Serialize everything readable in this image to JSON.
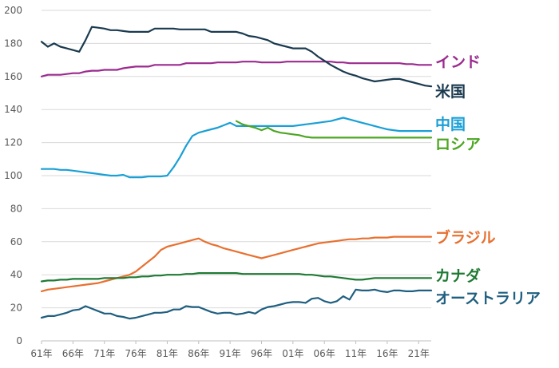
{
  "chart_data": {
    "type": "line",
    "title": "",
    "xlabel": "",
    "ylabel": "",
    "ylim": [
      0,
      200
    ],
    "xlim": [
      1961,
      2023
    ],
    "yticks": [
      0,
      20,
      40,
      60,
      80,
      100,
      120,
      140,
      160,
      180,
      200
    ],
    "xticks": [
      {
        "x": 1961,
        "label": "61年"
      },
      {
        "x": 1966,
        "label": "66年"
      },
      {
        "x": 1971,
        "label": "71年"
      },
      {
        "x": 1976,
        "label": "76年"
      },
      {
        "x": 1981,
        "label": "81年"
      },
      {
        "x": 1986,
        "label": "86年"
      },
      {
        "x": 1991,
        "label": "91年"
      },
      {
        "x": 1996,
        "label": "96年"
      },
      {
        "x": 2001,
        "label": "01年"
      },
      {
        "x": 2006,
        "label": "06年"
      },
      {
        "x": 2011,
        "label": "11年"
      },
      {
        "x": 2016,
        "label": "16年"
      },
      {
        "x": 2021,
        "label": "21年"
      }
    ],
    "grid": true,
    "legend": "direct labels at right end of lines",
    "series": [
      {
        "name": "インド",
        "color": "#9b2a8f",
        "x": [
          1961,
          1962,
          1963,
          1964,
          1965,
          1966,
          1967,
          1968,
          1969,
          1970,
          1971,
          1972,
          1973,
          1974,
          1975,
          1976,
          1977,
          1978,
          1979,
          1980,
          1981,
          1982,
          1983,
          1984,
          1985,
          1986,
          1987,
          1988,
          1989,
          1990,
          1991,
          1992,
          1993,
          1994,
          1995,
          1996,
          1997,
          1998,
          1999,
          2000,
          2001,
          2002,
          2003,
          2004,
          2005,
          2006,
          2007,
          2008,
          2009,
          2010,
          2011,
          2012,
          2013,
          2014,
          2015,
          2016,
          2017,
          2018,
          2019,
          2020,
          2021,
          2022,
          2023
        ],
        "values": [
          160,
          161,
          161,
          161,
          161.5,
          162,
          162,
          163,
          163.5,
          163.5,
          164,
          164,
          164,
          165,
          165.5,
          166,
          166,
          166,
          167,
          167,
          167,
          167,
          167,
          168,
          168,
          168,
          168,
          168,
          168.5,
          168.5,
          168.5,
          168.5,
          169,
          169,
          169,
          168.5,
          168.5,
          168.5,
          168.5,
          169,
          169,
          169,
          169,
          169,
          169,
          169,
          169,
          168.5,
          168.5,
          168,
          168,
          168,
          168,
          168,
          168,
          168,
          168,
          168,
          167.5,
          167.5,
          167,
          167,
          167
        ]
      },
      {
        "name": "米国",
        "color": "#1a3a4f",
        "x": [
          1961,
          1962,
          1963,
          1964,
          1965,
          1966,
          1967,
          1968,
          1969,
          1970,
          1971,
          1972,
          1973,
          1974,
          1975,
          1976,
          1977,
          1978,
          1979,
          1980,
          1981,
          1982,
          1983,
          1984,
          1985,
          1986,
          1987,
          1988,
          1989,
          1990,
          1991,
          1992,
          1993,
          1994,
          1995,
          1996,
          1997,
          1998,
          1999,
          2000,
          2001,
          2002,
          2003,
          2004,
          2005,
          2006,
          2007,
          2008,
          2009,
          2010,
          2011,
          2012,
          2013,
          2014,
          2015,
          2016,
          2017,
          2018,
          2019,
          2020,
          2021,
          2022,
          2023
        ],
        "values": [
          181,
          178,
          180,
          178,
          177,
          176,
          175,
          182,
          190,
          189.5,
          189,
          188,
          188,
          187.5,
          187,
          187,
          187,
          187,
          189,
          189,
          189,
          189,
          188.5,
          188.5,
          188.5,
          188.5,
          188.5,
          187,
          187,
          187,
          187,
          187,
          186,
          184.5,
          184,
          183,
          182,
          180,
          179,
          178,
          177,
          177,
          177,
          175,
          172,
          169.5,
          167,
          165,
          163,
          161.5,
          160.5,
          159,
          158,
          157,
          157.5,
          158,
          158.5,
          158.5,
          157.5,
          156.5,
          155.5,
          154.5,
          154
        ]
      },
      {
        "name": "中国",
        "color": "#1a9fd6",
        "x": [
          1961,
          1962,
          1963,
          1964,
          1965,
          1966,
          1967,
          1968,
          1969,
          1970,
          1971,
          1972,
          1973,
          1974,
          1975,
          1976,
          1977,
          1978,
          1979,
          1980,
          1981,
          1982,
          1983,
          1984,
          1985,
          1986,
          1987,
          1988,
          1989,
          1990,
          1991,
          1992,
          1993,
          1994,
          1995,
          1996,
          1997,
          1998,
          1999,
          2000,
          2001,
          2002,
          2003,
          2004,
          2005,
          2006,
          2007,
          2008,
          2009,
          2010,
          2011,
          2012,
          2013,
          2014,
          2015,
          2016,
          2017,
          2018,
          2019,
          2020,
          2021,
          2022,
          2023
        ],
        "values": [
          104,
          104,
          104,
          103.5,
          103.5,
          103,
          102.5,
          102,
          101.5,
          101,
          100.5,
          100,
          100,
          100.5,
          99,
          99,
          99,
          99.5,
          99.5,
          99.5,
          100,
          105,
          111,
          118,
          124,
          126,
          127,
          128,
          129,
          130.5,
          132,
          130,
          130,
          130,
          130,
          130,
          130,
          130,
          130,
          130,
          130,
          130.5,
          131,
          131.5,
          132,
          132.5,
          133,
          134,
          135,
          134,
          133,
          132,
          131,
          130,
          129,
          128,
          127.5,
          127,
          127,
          127,
          127,
          127,
          127
        ]
      },
      {
        "name": "ロシア",
        "color": "#4da623",
        "x": [
          1992,
          1993,
          1994,
          1995,
          1996,
          1997,
          1998,
          1999,
          2000,
          2001,
          2002,
          2003,
          2004,
          2005,
          2006,
          2007,
          2008,
          2009,
          2010,
          2011,
          2012,
          2013,
          2014,
          2015,
          2016,
          2017,
          2018,
          2019,
          2020,
          2021,
          2022,
          2023
        ],
        "values": [
          133,
          131,
          130,
          129,
          127.5,
          129,
          127,
          126,
          125.5,
          125,
          124.5,
          123.5,
          123,
          123,
          123,
          123,
          123,
          123,
          123,
          123,
          123,
          123,
          123,
          123,
          123,
          123,
          123,
          123,
          123,
          123,
          123,
          123
        ]
      },
      {
        "name": "ブラジル",
        "color": "#e87030",
        "x": [
          1961,
          1962,
          1963,
          1964,
          1965,
          1966,
          1967,
          1968,
          1969,
          1970,
          1971,
          1972,
          1973,
          1974,
          1975,
          1976,
          1977,
          1978,
          1979,
          1980,
          1981,
          1982,
          1983,
          1984,
          1985,
          1986,
          1987,
          1988,
          1989,
          1990,
          1991,
          1992,
          1993,
          1994,
          1995,
          1996,
          1997,
          1998,
          1999,
          2000,
          2001,
          2002,
          2003,
          2004,
          2005,
          2006,
          2007,
          2008,
          2009,
          2010,
          2011,
          2012,
          2013,
          2014,
          2015,
          2016,
          2017,
          2018,
          2019,
          2020,
          2021,
          2022,
          2023
        ],
        "values": [
          30,
          31,
          31.5,
          32,
          32.5,
          33,
          33.5,
          34,
          34.5,
          35,
          36,
          37,
          38,
          39,
          40,
          42,
          45,
          48,
          51,
          55,
          57,
          58,
          59,
          60,
          61,
          62,
          60,
          58.5,
          57.5,
          56,
          55,
          54,
          53,
          52,
          51,
          50,
          51,
          52,
          53,
          54,
          55,
          56,
          57,
          58,
          59,
          59.5,
          60,
          60.5,
          61,
          61.5,
          61.5,
          62,
          62,
          62.5,
          62.5,
          62.5,
          63,
          63,
          63,
          63,
          63,
          63,
          63
        ]
      },
      {
        "name": "カナダ",
        "color": "#1e7a33",
        "x": [
          1961,
          1962,
          1963,
          1964,
          1965,
          1966,
          1967,
          1968,
          1969,
          1970,
          1971,
          1972,
          1973,
          1974,
          1975,
          1976,
          1977,
          1978,
          1979,
          1980,
          1981,
          1982,
          1983,
          1984,
          1985,
          1986,
          1987,
          1988,
          1989,
          1990,
          1991,
          1992,
          1993,
          1994,
          1995,
          1996,
          1997,
          1998,
          1999,
          2000,
          2001,
          2002,
          2003,
          2004,
          2005,
          2006,
          2007,
          2008,
          2009,
          2010,
          2011,
          2012,
          2013,
          2014,
          2015,
          2016,
          2017,
          2018,
          2019,
          2020,
          2021,
          2022,
          2023
        ],
        "values": [
          36,
          36.5,
          36.5,
          37,
          37,
          37.5,
          37.5,
          37.5,
          37.5,
          37.5,
          38,
          38,
          38,
          38,
          38.5,
          38.5,
          39,
          39,
          39.5,
          39.5,
          40,
          40,
          40,
          40.5,
          40.5,
          41,
          41,
          41,
          41,
          41,
          41,
          41,
          40.5,
          40.5,
          40.5,
          40.5,
          40.5,
          40.5,
          40.5,
          40.5,
          40.5,
          40.5,
          40,
          40,
          39.5,
          39,
          39,
          38.5,
          38,
          37.5,
          37,
          37,
          37.5,
          38,
          38,
          38,
          38,
          38,
          38,
          38,
          38,
          38,
          38
        ]
      },
      {
        "name": "オーストラリア",
        "color": "#1f5f80",
        "x": [
          1961,
          1962,
          1963,
          1964,
          1965,
          1966,
          1967,
          1968,
          1969,
          1970,
          1971,
          1972,
          1973,
          1974,
          1975,
          1976,
          1977,
          1978,
          1979,
          1980,
          1981,
          1982,
          1983,
          1984,
          1985,
          1986,
          1987,
          1988,
          1989,
          1990,
          1991,
          1992,
          1993,
          1994,
          1995,
          1996,
          1997,
          1998,
          1999,
          2000,
          2001,
          2002,
          2003,
          2004,
          2005,
          2006,
          2007,
          2008,
          2009,
          2010,
          2011,
          2012,
          2013,
          2014,
          2015,
          2016,
          2017,
          2018,
          2019,
          2020,
          2021,
          2022,
          2023
        ],
        "values": [
          14,
          15,
          15,
          16,
          17,
          18.5,
          19,
          21,
          19.5,
          18,
          16.5,
          16.5,
          15,
          14.5,
          13.5,
          14,
          15,
          16,
          17,
          17,
          17.5,
          19,
          19,
          21,
          20.5,
          20.5,
          19,
          17.5,
          16.5,
          17,
          17,
          16,
          16.5,
          17.5,
          16.5,
          19,
          20.5,
          21,
          22,
          23,
          23.5,
          23.5,
          23,
          25.5,
          26,
          24,
          23,
          24,
          27,
          25,
          31,
          30.5,
          30.5,
          31,
          30,
          29.5,
          30.5,
          30.5,
          30,
          30,
          30.5,
          30.5,
          30.5
        ]
      }
    ],
    "labels": [
      {
        "text": "インド",
        "series": 0
      },
      {
        "text": "米国",
        "series": 1
      },
      {
        "text": "中国",
        "series": 2
      },
      {
        "text": "ロシア",
        "series": 3
      },
      {
        "text": "ブラジル",
        "series": 4
      },
      {
        "text": "カナダ",
        "series": 5
      },
      {
        "text": "オーストラリア",
        "series": 6
      }
    ]
  }
}
